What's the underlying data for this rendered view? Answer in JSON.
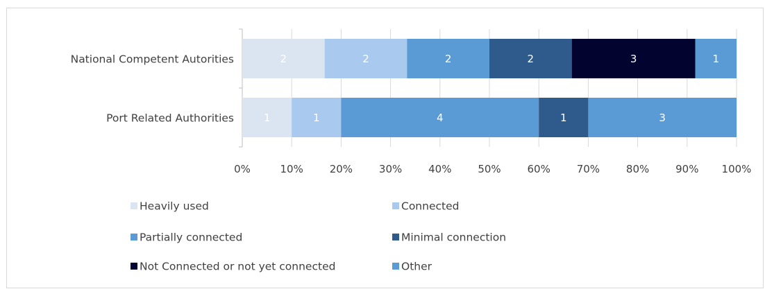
{
  "chart_data": {
    "type": "bar",
    "orientation": "horizontal",
    "stacked": "percent",
    "title": "",
    "xlabel": "",
    "ylabel": "",
    "xlim": [
      0,
      100
    ],
    "x_tick_labels": [
      "0%",
      "10%",
      "20%",
      "30%",
      "40%",
      "50%",
      "60%",
      "70%",
      "80%",
      "90%",
      "100%"
    ],
    "grid": true,
    "legend_position": "bottom",
    "categories": [
      "National Competent Autorities",
      "Port  Related Authorities"
    ],
    "series": [
      {
        "name": "Heavily used",
        "color": "#dbe5f1",
        "values": [
          2,
          1
        ]
      },
      {
        "name": "Connected",
        "color": "#aac9ee",
        "values": [
          2,
          1
        ]
      },
      {
        "name": "Partially connected",
        "color": "#5b9bd5",
        "values": [
          2,
          4
        ]
      },
      {
        "name": "Minimal connection",
        "color": "#2e5a8c",
        "values": [
          2,
          1
        ]
      },
      {
        "name": "Not Connected or not yet connected",
        "color": "#02032e",
        "values": [
          3,
          0
        ]
      },
      {
        "name": "Other",
        "color": "#5b9bd5",
        "values": [
          1,
          3
        ]
      }
    ]
  }
}
